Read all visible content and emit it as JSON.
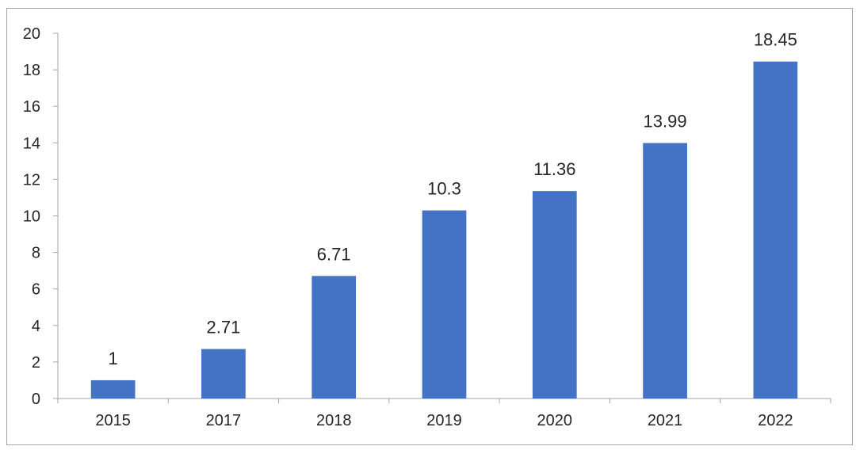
{
  "chart_data": {
    "type": "bar",
    "title": "",
    "xlabel": "",
    "ylabel": "",
    "categories": [
      "2015",
      "2017",
      "2018",
      "2019",
      "2020",
      "2021",
      "2022"
    ],
    "values": [
      1,
      2.71,
      6.71,
      10.3,
      11.36,
      13.99,
      18.45
    ],
    "data_labels": [
      "1",
      "2.71",
      "6.71",
      "10.3",
      "11.36",
      "13.99",
      "18.45"
    ],
    "ylim": [
      0,
      20
    ],
    "y_ticks": [
      0,
      2,
      4,
      6,
      8,
      10,
      12,
      14,
      16,
      18,
      20
    ],
    "y_tick_labels": [
      "0",
      "2",
      "4",
      "6",
      "8",
      "10",
      "12",
      "14",
      "16",
      "18",
      "20"
    ],
    "grid": false,
    "legend": "none",
    "colors": {
      "bar": "#4472c4",
      "axis": "#a6a6a6",
      "text": "#262626",
      "border": "#a6a6a6"
    }
  }
}
